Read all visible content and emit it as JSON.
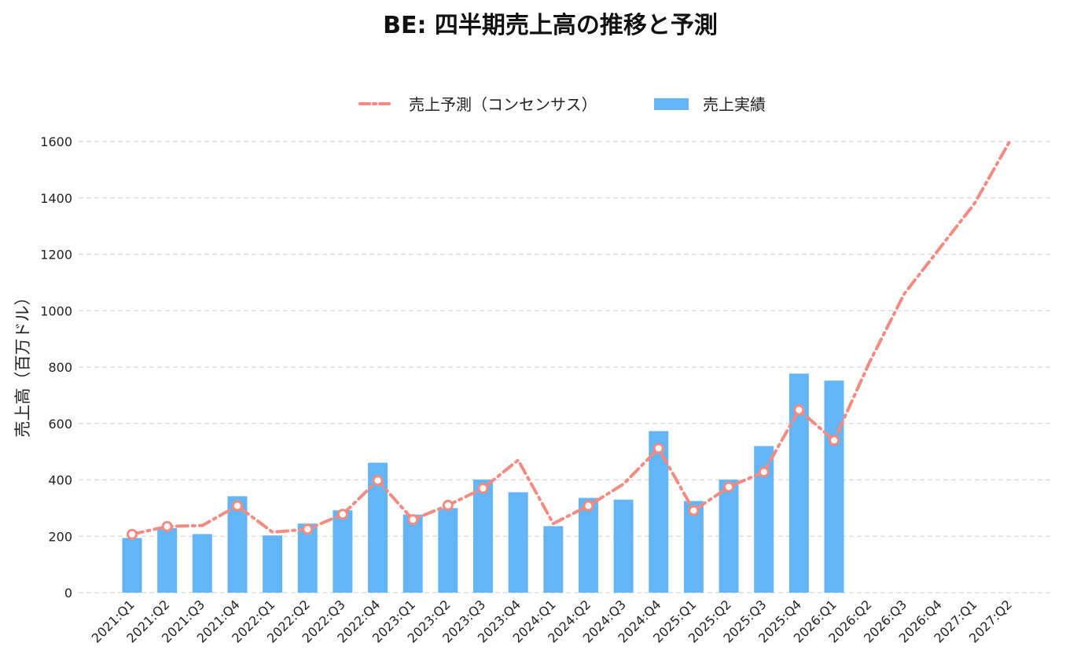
{
  "chart_data": {
    "type": "bar",
    "title": "BE: 四半期売上高の推移と予測",
    "xlabel": "",
    "ylabel": "売上高（百万ドル）",
    "ylim": [
      0,
      1600
    ],
    "yticks": [
      0,
      200,
      400,
      600,
      800,
      1000,
      1200,
      1400,
      1600
    ],
    "grid": true,
    "legend_position": "top-center",
    "categories": [
      "2021:Q1",
      "2021:Q2",
      "2021:Q3",
      "2021:Q4",
      "2022:Q1",
      "2022:Q2",
      "2022:Q3",
      "2022:Q4",
      "2023:Q1",
      "2023:Q2",
      "2023:Q3",
      "2023:Q4",
      "2024:Q1",
      "2024:Q2",
      "2024:Q3",
      "2024:Q4",
      "2025:Q1",
      "2025:Q2",
      "2025:Q3",
      "2025:Q4",
      "2026:Q1",
      "2026:Q2",
      "2026:Q3",
      "2026:Q4",
      "2027:Q1",
      "2027:Q2"
    ],
    "series": [
      {
        "name": "売上予測（コンセンサス）",
        "type": "line",
        "style": "dash-dot",
        "color": "#f28b82",
        "values": [
          207,
          235,
          238,
          308,
          215,
          225,
          278,
          398,
          259,
          310,
          370,
          470,
          245,
          308,
          385,
          512,
          291,
          375,
          428,
          648,
          540,
          815,
          1060,
          1220,
          1380,
          1600
        ],
        "markers": [
          true,
          true,
          false,
          true,
          false,
          true,
          true,
          true,
          true,
          true,
          true,
          false,
          false,
          true,
          false,
          true,
          true,
          true,
          true,
          true,
          true,
          false,
          false,
          false,
          false,
          false
        ]
      },
      {
        "name": "売上実績",
        "type": "bar",
        "color": "#64b5f6",
        "values": [
          194,
          229,
          208,
          342,
          203,
          245,
          292,
          461,
          277,
          300,
          401,
          356,
          236,
          336,
          330,
          573,
          325,
          401,
          520,
          777,
          752,
          null,
          null,
          null,
          null,
          null
        ]
      }
    ]
  }
}
